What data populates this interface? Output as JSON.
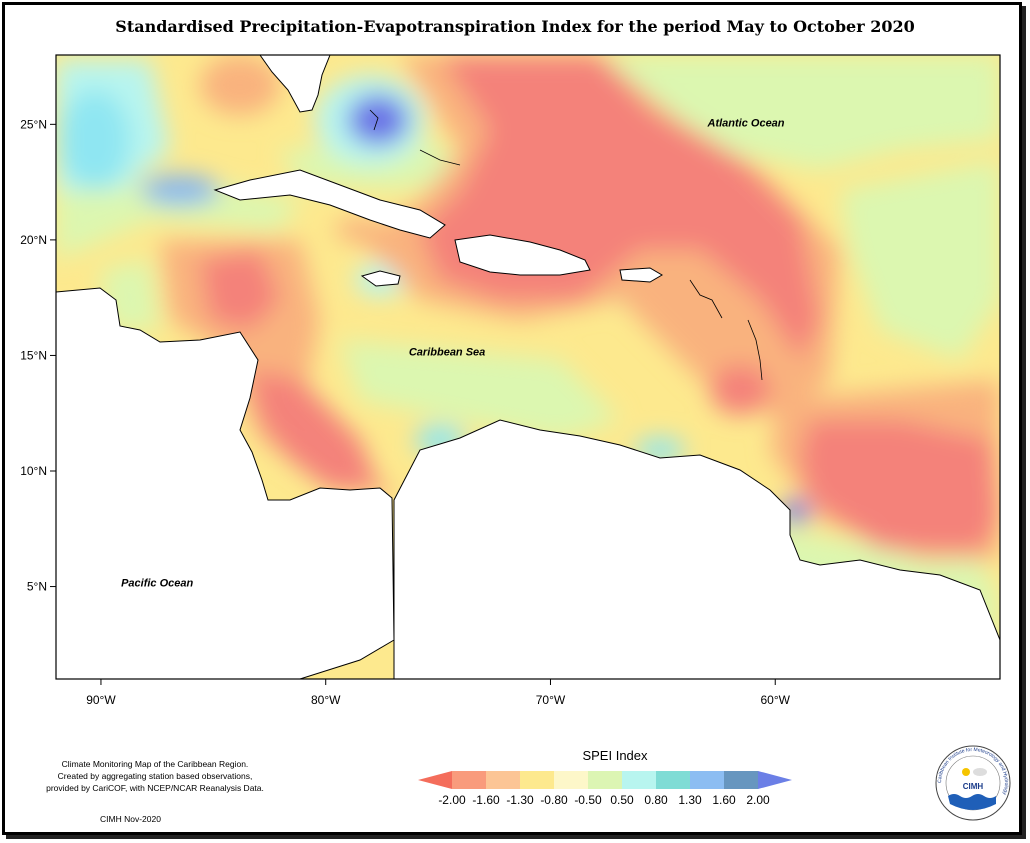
{
  "title": "Standardised Precipitation-Evapotranspiration Index for the period May to October 2020",
  "map": {
    "lon_range": [
      -92,
      -50
    ],
    "lat_range": [
      1,
      28
    ],
    "lon_ticks": [
      {
        "value": -90,
        "label": "90°W"
      },
      {
        "value": -80,
        "label": "80°W"
      },
      {
        "value": -70,
        "label": "70°W"
      },
      {
        "value": -60,
        "label": "60°W"
      }
    ],
    "lat_ticks": [
      {
        "value": 25,
        "label": "25°N"
      },
      {
        "value": 20,
        "label": "20°N"
      },
      {
        "value": 15,
        "label": "15°N"
      },
      {
        "value": 10,
        "label": "10°N"
      },
      {
        "value": 5,
        "label": "5°N"
      }
    ],
    "place_labels": [
      {
        "text": "Atlantic Ocean",
        "lon": -61.3,
        "lat": 24.9
      },
      {
        "text": "Caribbean Sea",
        "lon": -74.6,
        "lat": 15.0
      },
      {
        "text": "Pacific Ocean",
        "lon": -87.5,
        "lat": 5.0
      }
    ]
  },
  "legend": {
    "title": "SPEI Index",
    "ticks": [
      "-2.00",
      "-1.60",
      "-1.30",
      "-0.80",
      "-0.50",
      "0.50",
      "0.80",
      "1.30",
      "1.60",
      "2.00"
    ],
    "colors": [
      "#f46d5b",
      "#f99b7c",
      "#fcc595",
      "#fde98e",
      "#fdf7c9",
      "#dcf5b3",
      "#b8f5ef",
      "#7fdcd5",
      "#8cbdf2",
      "#6796bf",
      "#6b7fe6"
    ]
  },
  "footer_note": [
    "Climate Monitoring Map of the Caribbean Region.",
    "Created by aggregating station based observations,",
    "provided by CariCOF, with NCEP/NCAR Reanalysis Data."
  ],
  "credit": "CIMH Nov-2020",
  "logo": {
    "text": "CIMH",
    "ring_text": "Caribbean Institute for Meteorology and Hydrology"
  },
  "colors": {
    "deep_red": "#f4827a",
    "orange": "#f9b27e",
    "light_orange": "#fcd79a",
    "yellow": "#fdf48c",
    "pale_green": "#dcf7b0",
    "light_cyan": "#b8f5ef",
    "cyan": "#8fe6f2",
    "blue": "#85b6f0",
    "purple_blue": "#6a72e6"
  }
}
